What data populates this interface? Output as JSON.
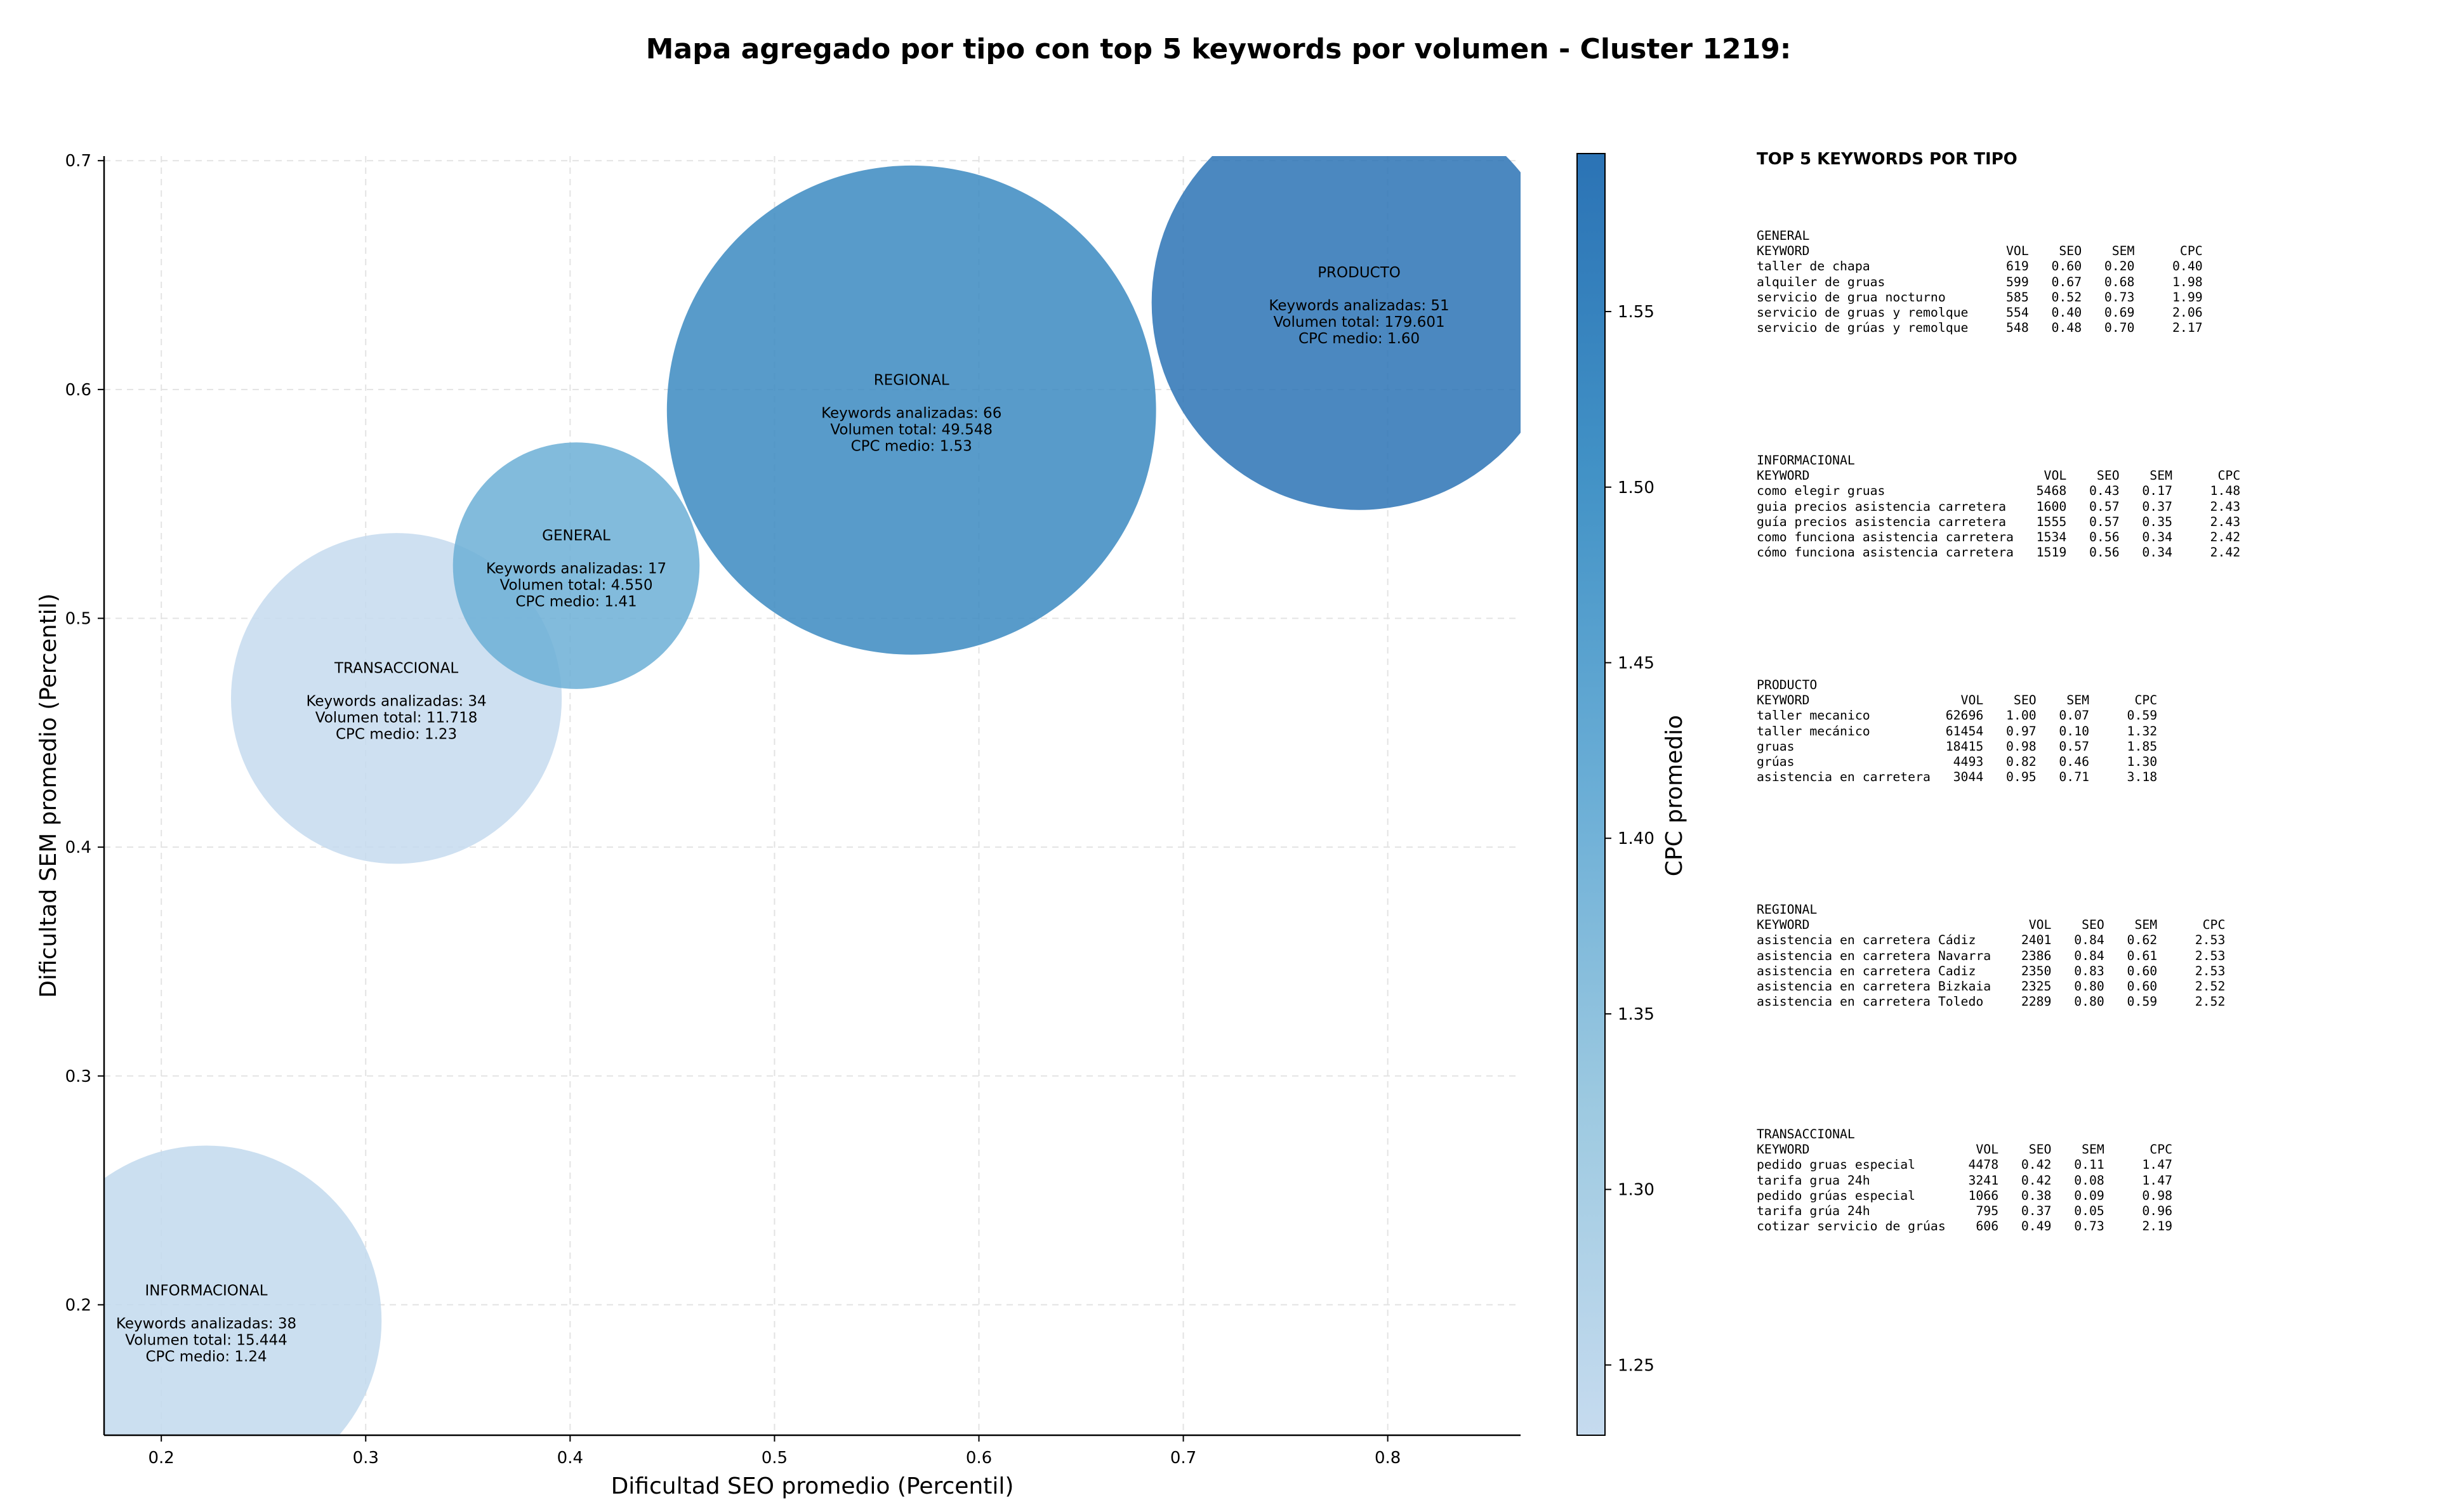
{
  "chart_data": {
    "type": "scatter",
    "title": "Mapa agregado por tipo con top 5 keywords por volumen - Cluster 1219:",
    "xlabel": "Dificultad SEO promedio (Percentil)",
    "ylabel": "Dificultad SEM promedio (Percentil)",
    "xlim": [
      0.172,
      0.865
    ],
    "ylim": [
      0.143,
      0.702
    ],
    "xticks": [
      0.2,
      0.3,
      0.4,
      0.5,
      0.6,
      0.7,
      0.8
    ],
    "yticks": [
      0.2,
      0.3,
      0.4,
      0.5,
      0.6,
      0.7
    ],
    "grid": true,
    "colorbar": {
      "label": "CPC promedio",
      "min": 1.23,
      "max": 1.595,
      "ticks": [
        1.25,
        1.3,
        1.35,
        1.4,
        1.45,
        1.5,
        1.55
      ],
      "colors": [
        "#c6dbef",
        "#9ecae1",
        "#6baed6",
        "#4292c6",
        "#2b73b5"
      ]
    },
    "points": [
      {
        "name": "INFORMACIONAL",
        "x": 0.222,
        "y": 0.193,
        "keywords": 38,
        "volumen": "15.444",
        "cpc": 1.24,
        "text": [
          "INFORMACIONAL",
          "",
          "Keywords analizadas: 38",
          "Volumen total: 15.444",
          "CPC medio: 1.24"
        ]
      },
      {
        "name": "TRANSACCIONAL",
        "x": 0.315,
        "y": 0.465,
        "keywords": 34,
        "volumen": "11.718",
        "cpc": 1.23,
        "text": [
          "TRANSACCIONAL",
          "",
          "Keywords analizadas: 34",
          "Volumen total: 11.718",
          "CPC medio: 1.23"
        ]
      },
      {
        "name": "GENERAL",
        "x": 0.403,
        "y": 0.523,
        "keywords": 17,
        "volumen": "4.550",
        "cpc": 1.41,
        "text": [
          "GENERAL",
          "",
          "Keywords analizadas: 17",
          "Volumen total: 4.550",
          "CPC medio: 1.41"
        ]
      },
      {
        "name": "REGIONAL",
        "x": 0.567,
        "y": 0.591,
        "keywords": 66,
        "volumen": "49.548",
        "cpc": 1.53,
        "text": [
          "REGIONAL",
          "",
          "Keywords analizadas: 66",
          "Volumen total: 49.548",
          "CPC medio: 1.53"
        ]
      },
      {
        "name": "PRODUCTO",
        "x": 0.786,
        "y": 0.638,
        "keywords": 51,
        "volumen": "179.601",
        "cpc": 1.6,
        "text": [
          "PRODUCTO",
          "",
          "Keywords analizadas: 51",
          "Volumen total: 179.601",
          "CPC medio: 1.60"
        ]
      }
    ]
  },
  "top5": {
    "title": "TOP 5 KEYWORDS POR TIPO",
    "blocks": [
      {
        "tipo": "GENERAL",
        "text": "GENERAL\nKEYWORD                          VOL    SEO    SEM      CPC\ntaller de chapa                  619   0.60   0.20     0.40\nalquiler de gruas                599   0.67   0.68     1.98\nservicio de grua nocturno        585   0.52   0.73     1.99\nservicio de gruas y remolque     554   0.40   0.69     2.06\nservicio de grúas y remolque     548   0.48   0.70     2.17"
      },
      {
        "tipo": "INFORMACIONAL",
        "text": "INFORMACIONAL\nKEYWORD                               VOL    SEO    SEM      CPC\ncomo elegir gruas                    5468   0.43   0.17     1.48\nguia precios asistencia carretera    1600   0.57   0.37     2.43\nguía precios asistencia carretera    1555   0.57   0.35     2.43\ncomo funciona asistencia carretera   1534   0.56   0.34     2.42\ncómo funciona asistencia carretera   1519   0.56   0.34     2.42"
      },
      {
        "tipo": "PRODUCTO",
        "text": "PRODUCTO\nKEYWORD                    VOL    SEO    SEM      CPC\ntaller mecanico          62696   1.00   0.07     0.59\ntaller mecánico          61454   0.97   0.10     1.32\ngruas                    18415   0.98   0.57     1.85\ngrúas                     4493   0.82   0.46     1.30\nasistencia en carretera   3044   0.95   0.71     3.18"
      },
      {
        "tipo": "REGIONAL",
        "text": "REGIONAL\nKEYWORD                             VOL    SEO    SEM      CPC\nasistencia en carretera Cádiz      2401   0.84   0.62     2.53\nasistencia en carretera Navarra    2386   0.84   0.61     2.53\nasistencia en carretera Cadiz      2350   0.83   0.60     2.53\nasistencia en carretera Bizkaia    2325   0.80   0.60     2.52\nasistencia en carretera Toledo     2289   0.80   0.59     2.52"
      },
      {
        "tipo": "TRANSACCIONAL",
        "text": "TRANSACCIONAL\nKEYWORD                      VOL    SEO    SEM      CPC\npedido gruas especial       4478   0.42   0.11     1.47\ntarifa grua 24h             3241   0.42   0.08     1.47\npedido grúas especial       1066   0.38   0.09     0.98\ntarifa grúa 24h              795   0.37   0.05     0.96\ncotizar servicio de grúas    606   0.49   0.73     2.19"
      }
    ]
  }
}
